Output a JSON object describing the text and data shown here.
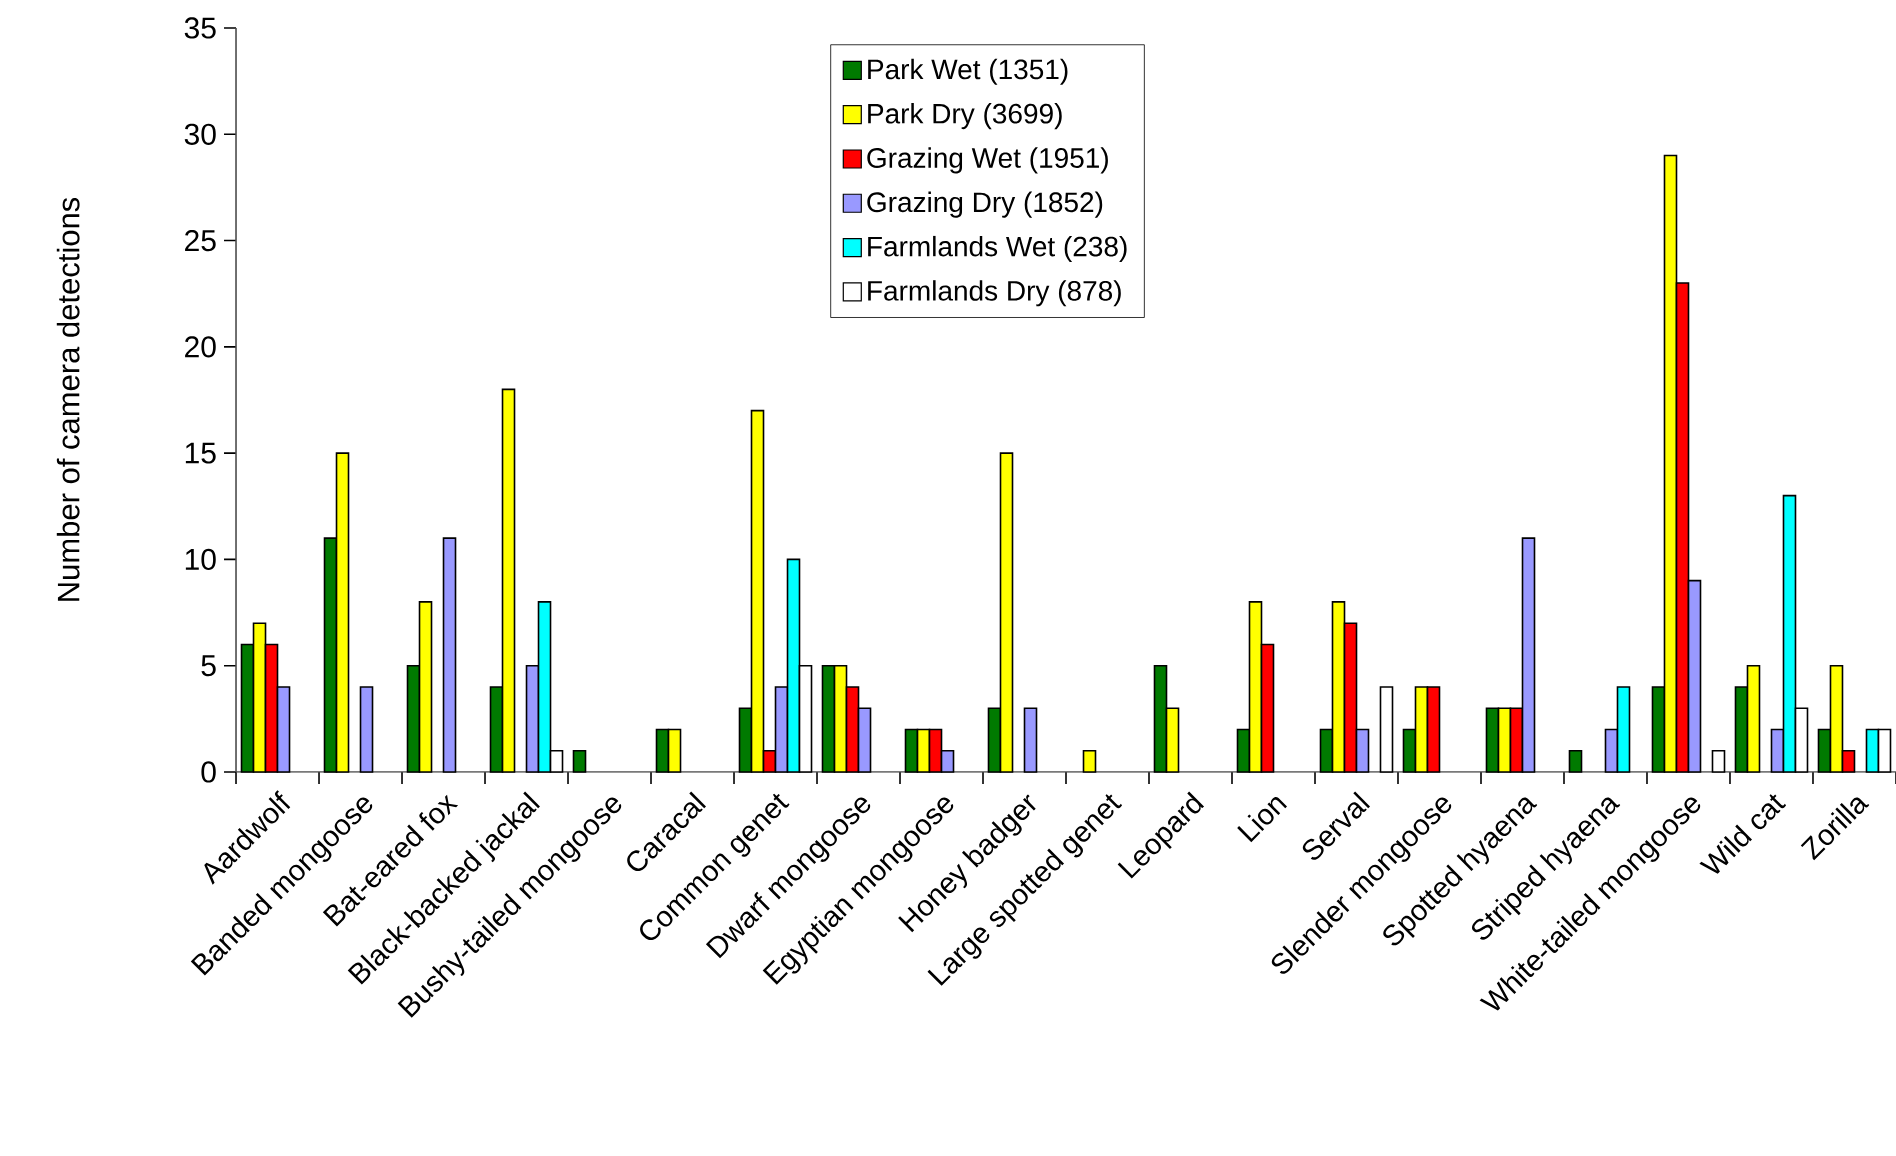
{
  "chart_data": {
    "type": "bar",
    "ylabel": "Number of camera detections",
    "categories": [
      "Aardwolf",
      "Banded mongoose",
      "Bat-eared fox",
      "Black-backed jackal",
      "Bushy-tailed mongoose",
      "Caracal",
      "Common genet",
      "Dwarf mongoose",
      "Egyptian mongoose",
      "Honey badger",
      "Large spotted genet",
      "Leopard",
      "Lion",
      "Serval",
      "Slender mongoose",
      "Spotted hyaena",
      "Striped hyaena",
      "White-tailed mongoose",
      "Wild cat",
      "Zorilla"
    ],
    "series": [
      {
        "name": "Park Wet (1351)",
        "color": "#007a00",
        "values": [
          6,
          11,
          5,
          4,
          1,
          2,
          3,
          5,
          2,
          3,
          null,
          5,
          2,
          2,
          2,
          3,
          1,
          4,
          4,
          2
        ]
      },
      {
        "name": "Park Dry (3699)",
        "color": "#ffff00",
        "values": [
          7,
          15,
          8,
          18,
          null,
          2,
          17,
          5,
          2,
          15,
          1,
          3,
          8,
          8,
          4,
          3,
          null,
          29,
          5,
          5
        ]
      },
      {
        "name": "Grazing Wet (1951)",
        "color": "#ff0000",
        "values": [
          6,
          null,
          null,
          null,
          null,
          null,
          1,
          4,
          2,
          null,
          null,
          null,
          6,
          7,
          4,
          3,
          null,
          23,
          null,
          1
        ]
      },
      {
        "name": "Grazing Dry (1852)",
        "color": "#9999ff",
        "values": [
          4,
          4,
          11,
          5,
          null,
          null,
          4,
          3,
          1,
          3,
          null,
          null,
          null,
          2,
          null,
          11,
          2,
          9,
          2,
          null
        ]
      },
      {
        "name": "Farmlands Wet (238)",
        "color": "#00ffff",
        "values": [
          null,
          null,
          null,
          8,
          null,
          null,
          10,
          null,
          null,
          null,
          null,
          null,
          null,
          null,
          null,
          null,
          4,
          null,
          13,
          2
        ]
      },
      {
        "name": "Farmlands Dry (878)",
        "color": "#ffffff",
        "values": [
          null,
          null,
          null,
          1,
          null,
          null,
          5,
          null,
          null,
          null,
          null,
          null,
          null,
          4,
          null,
          null,
          null,
          1,
          3,
          2
        ]
      }
    ],
    "ylim": [
      0,
      35
    ],
    "yticks": [
      0,
      5,
      10,
      15,
      20,
      25,
      30,
      35
    ],
    "grid": false,
    "legend": "top"
  }
}
